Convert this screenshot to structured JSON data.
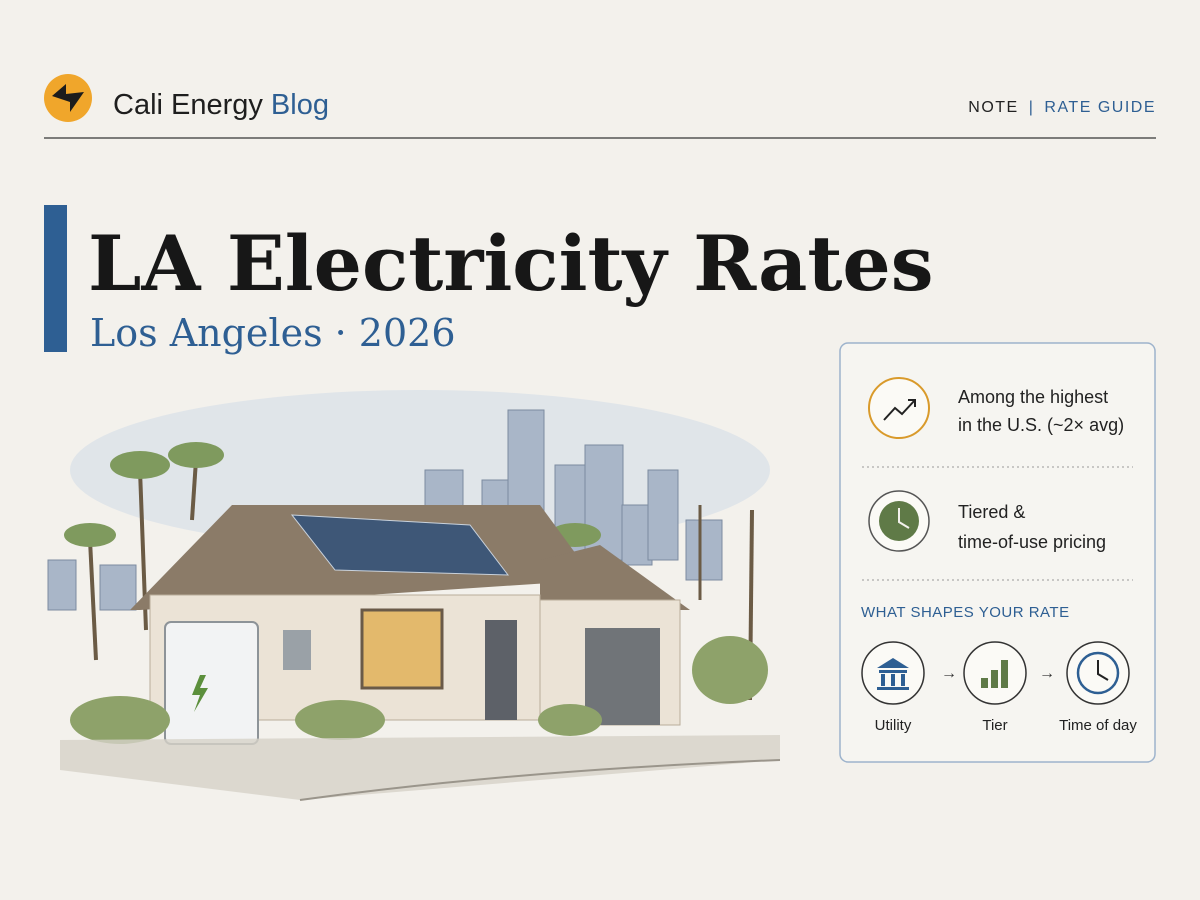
{
  "header": {
    "brand": {
      "name": "Cali Energy",
      "accent": "Blog"
    },
    "nav": [
      "NOTE",
      "RATE GUIDE"
    ]
  },
  "hero": {
    "title": "LA Electricity Rates",
    "subtitle": "Los Angeles · 2026"
  },
  "card": {
    "highlights": [
      {
        "lines": [
          "Among the highest",
          "in the U.S. (~2× avg)"
        ]
      },
      {
        "lines": [
          "Tiered &",
          "time-of-use pricing"
        ]
      }
    ],
    "factors": {
      "title": "WHAT SHAPES YOUR RATE",
      "steps": [
        "Utility",
        "Tier",
        "Time of day"
      ]
    }
  }
}
